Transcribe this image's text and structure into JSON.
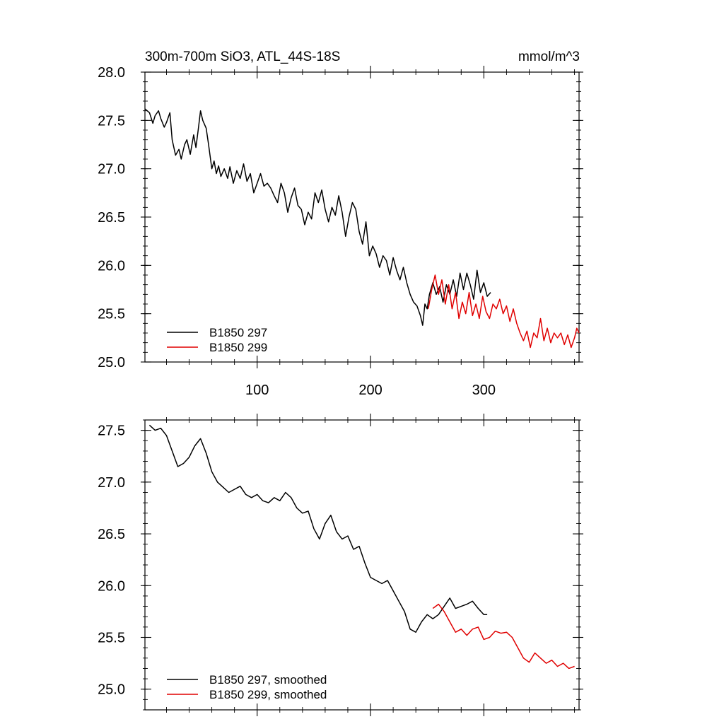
{
  "chart_data": [
    {
      "type": "line",
      "title": "300m-700m SiO3, ATL_44S-18S",
      "units": "mmol/m^3",
      "xlim": [
        1,
        384
      ],
      "ylim": [
        25.0,
        28.0
      ],
      "yticks": [
        "25.0",
        "25.5",
        "26.0",
        "26.5",
        "27.0",
        "27.5",
        "28.0"
      ],
      "xticks": [
        "100",
        "200",
        "300"
      ],
      "legend_position": "bottom-left",
      "series": [
        {
          "name": "B1850 297",
          "color": "#000000",
          "x": [
            1,
            5,
            8,
            10,
            13,
            15,
            18,
            20,
            23,
            25,
            28,
            31,
            33,
            36,
            38,
            41,
            44,
            46,
            48,
            50,
            52,
            55,
            57,
            60,
            62,
            64,
            66,
            68,
            71,
            74,
            76,
            79,
            82,
            85,
            88,
            91,
            94,
            97,
            100,
            103,
            106,
            109,
            112,
            115,
            118,
            121,
            124,
            127,
            130,
            133,
            136,
            139,
            142,
            145,
            148,
            151,
            154,
            157,
            160,
            163,
            166,
            169,
            172,
            175,
            178,
            181,
            184,
            187,
            190,
            193,
            196,
            199,
            202,
            205,
            208,
            211,
            214,
            217,
            220,
            223,
            226,
            229,
            232,
            235,
            238,
            241,
            244,
            246,
            248,
            250,
            252,
            255,
            258,
            261,
            264,
            267,
            270,
            273,
            276,
            279,
            282,
            285,
            288,
            291,
            294,
            297,
            300,
            303,
            306
          ],
          "y": [
            27.62,
            27.58,
            27.47,
            27.55,
            27.6,
            27.52,
            27.43,
            27.48,
            27.58,
            27.3,
            27.14,
            27.2,
            27.1,
            27.25,
            27.3,
            27.15,
            27.35,
            27.22,
            27.4,
            27.6,
            27.5,
            27.42,
            27.26,
            27.0,
            27.08,
            26.95,
            27.03,
            26.92,
            27.0,
            26.9,
            27.02,
            26.85,
            26.98,
            26.9,
            27.05,
            26.87,
            26.95,
            26.75,
            26.85,
            26.95,
            26.82,
            26.85,
            26.8,
            26.72,
            26.65,
            26.85,
            26.75,
            26.55,
            26.7,
            26.8,
            26.62,
            26.58,
            26.42,
            26.55,
            26.48,
            26.75,
            26.65,
            26.78,
            26.58,
            26.45,
            26.6,
            26.52,
            26.72,
            26.55,
            26.3,
            26.5,
            26.65,
            26.58,
            26.35,
            26.22,
            26.45,
            26.1,
            26.2,
            26.12,
            25.98,
            26.1,
            26.05,
            25.9,
            26.08,
            25.95,
            25.85,
            25.98,
            25.82,
            25.7,
            25.62,
            25.58,
            25.48,
            25.38,
            25.6,
            25.55,
            25.7,
            25.82,
            25.7,
            25.78,
            25.62,
            25.8,
            25.7,
            25.85,
            25.68,
            25.92,
            25.75,
            25.92,
            25.8,
            25.65,
            25.95,
            25.72,
            25.82,
            25.68,
            25.72
          ]
        },
        {
          "name": "B1850 299",
          "color": "#e00000",
          "x": [
            251,
            254,
            257,
            260,
            263,
            266,
            269,
            272,
            275,
            278,
            281,
            284,
            287,
            290,
            293,
            296,
            299,
            302,
            305,
            308,
            311,
            314,
            317,
            320,
            323,
            326,
            329,
            332,
            335,
            338,
            341,
            344,
            347,
            350,
            353,
            356,
            359,
            362,
            365,
            368,
            371,
            374,
            377,
            380,
            382,
            384
          ],
          "y": [
            25.55,
            25.75,
            25.9,
            25.7,
            25.85,
            25.6,
            25.8,
            25.55,
            25.72,
            25.45,
            25.62,
            25.5,
            25.72,
            25.48,
            25.6,
            25.45,
            25.68,
            25.52,
            25.45,
            25.6,
            25.55,
            25.65,
            25.5,
            25.58,
            25.42,
            25.55,
            25.4,
            25.3,
            25.22,
            25.32,
            25.15,
            25.3,
            25.25,
            25.45,
            25.22,
            25.35,
            25.2,
            25.3,
            25.25,
            25.3,
            25.18,
            25.28,
            25.15,
            25.25,
            25.35,
            25.3
          ]
        }
      ]
    },
    {
      "type": "line",
      "xlim": [
        1,
        384
      ],
      "ylim": [
        24.8,
        27.6
      ],
      "yticks": [
        "25.0",
        "25.5",
        "26.0",
        "26.5",
        "27.0",
        "27.5"
      ],
      "legend_position": "bottom-left",
      "series": [
        {
          "name": "B1850 297, smoothed",
          "color": "#000000",
          "x": [
            5,
            10,
            15,
            20,
            25,
            30,
            35,
            40,
            45,
            50,
            55,
            60,
            65,
            70,
            75,
            80,
            85,
            90,
            95,
            100,
            105,
            110,
            115,
            120,
            125,
            130,
            135,
            140,
            145,
            150,
            155,
            160,
            165,
            170,
            175,
            180,
            185,
            190,
            195,
            200,
            205,
            210,
            215,
            220,
            225,
            230,
            235,
            240,
            245,
            250,
            255,
            260,
            265,
            270,
            275,
            280,
            285,
            290,
            295,
            300,
            303
          ],
          "y": [
            27.55,
            27.5,
            27.52,
            27.45,
            27.3,
            27.15,
            27.18,
            27.24,
            27.35,
            27.42,
            27.28,
            27.1,
            27.0,
            26.95,
            26.9,
            26.93,
            26.96,
            26.88,
            26.85,
            26.88,
            26.82,
            26.8,
            26.85,
            26.82,
            26.9,
            26.85,
            26.75,
            26.7,
            26.72,
            26.55,
            26.45,
            26.6,
            26.68,
            26.52,
            26.45,
            26.48,
            26.35,
            26.38,
            26.22,
            26.08,
            26.05,
            26.02,
            26.05,
            25.95,
            25.85,
            25.75,
            25.58,
            25.55,
            25.65,
            25.72,
            25.68,
            25.72,
            25.8,
            25.88,
            25.78,
            25.8,
            25.82,
            25.85,
            25.78,
            25.72,
            25.72
          ]
        },
        {
          "name": "B1850 299, smoothed",
          "color": "#e00000",
          "x": [
            255,
            260,
            265,
            270,
            275,
            280,
            285,
            290,
            295,
            300,
            305,
            310,
            315,
            320,
            325,
            330,
            335,
            340,
            345,
            350,
            355,
            360,
            365,
            370,
            375,
            380
          ],
          "y": [
            25.78,
            25.82,
            25.75,
            25.65,
            25.55,
            25.58,
            25.52,
            25.58,
            25.6,
            25.48,
            25.5,
            25.56,
            25.54,
            25.55,
            25.5,
            25.4,
            25.3,
            25.26,
            25.35,
            25.3,
            25.25,
            25.28,
            25.22,
            25.25,
            25.2,
            25.22
          ]
        }
      ]
    }
  ]
}
